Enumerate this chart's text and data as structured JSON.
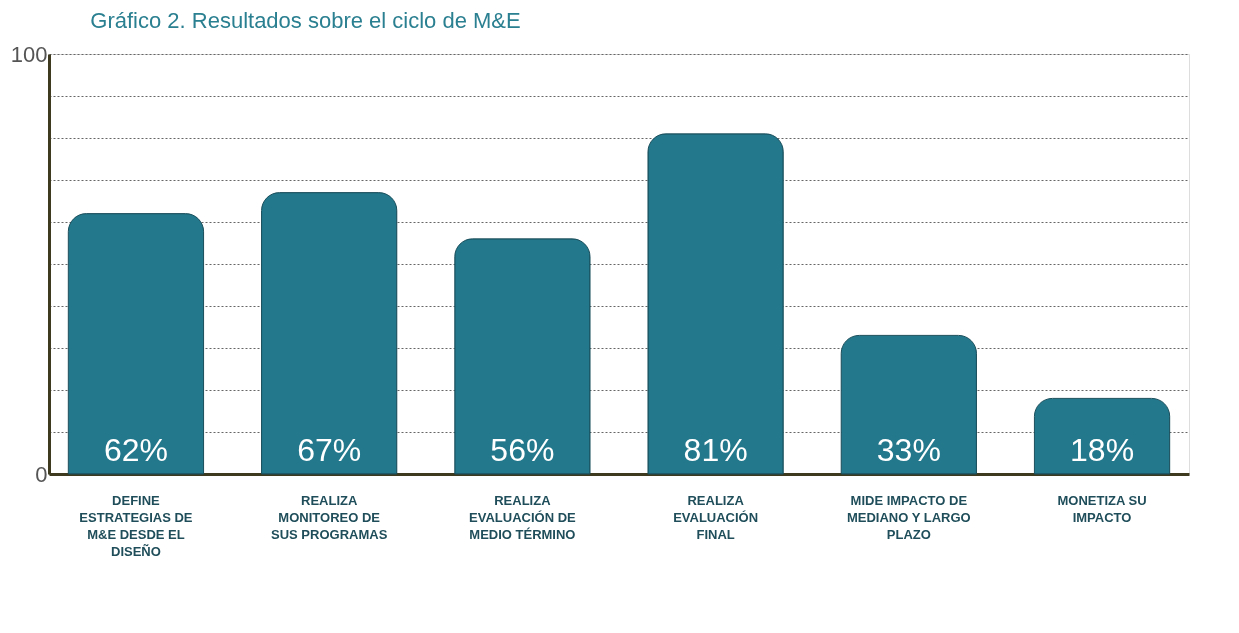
{
  "chart_data": {
    "type": "bar",
    "title": "Gráfico 2. Resultados sobre el ciclo de M&E",
    "categories": [
      "DEFINE ESTRATEGIAS DE M&E DESDE EL DISEÑO",
      "REALIZA MONITOREO DE SUS PROGRAMAS",
      "REALIZA EVALUACIÓN DE MEDIO TÉRMINO",
      "REALIZA EVALUACIÓN FINAL",
      "MIDE IMPACTO DE MEDIANO Y LARGO PLAZO",
      "MONETIZA SU IMPACTO"
    ],
    "values": [
      62,
      67,
      56,
      81,
      33,
      18
    ],
    "value_labels": [
      "62%",
      "67%",
      "56%",
      "81%",
      "33%",
      "18%"
    ],
    "color": "#23788c",
    "ylim": [
      0,
      100
    ],
    "yticks": [
      0,
      {
        "value": 10,
        "label": null
      },
      {
        "value": 20,
        "label": null
      },
      {
        "value": 30,
        "label": null
      },
      {
        "value": 40,
        "label": null
      },
      {
        "value": 50,
        "label": null
      },
      {
        "value": 60,
        "label": null
      },
      {
        "value": 70,
        "label": null
      },
      {
        "value": 80,
        "label": null
      },
      {
        "value": 90,
        "label": null
      },
      100
    ],
    "grid": "y"
  }
}
